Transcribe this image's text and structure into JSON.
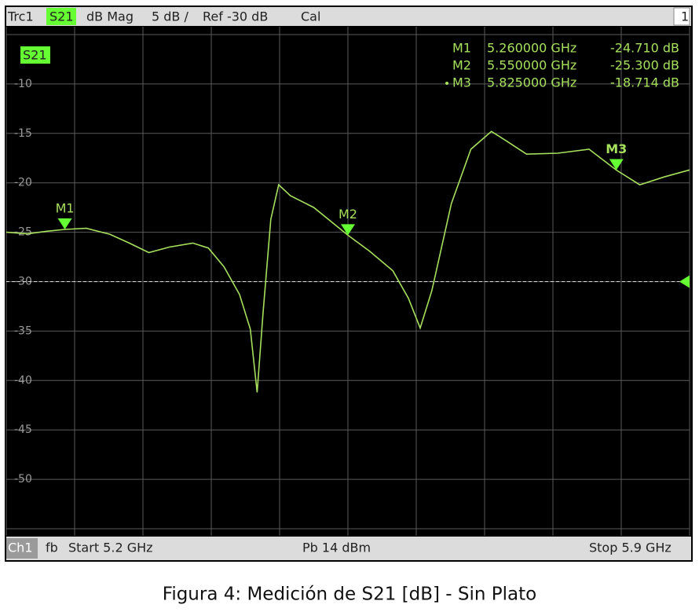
{
  "chart_data": {
    "type": "line",
    "header_items": [
      "Trc1",
      "S21",
      "dB Mag",
      "5 dB /",
      "Ref -30 dB",
      "Cal",
      "1"
    ],
    "footer_items": [
      "Ch1",
      "fb",
      "Start 5.2 GHz",
      "Pb 14 dBm",
      "Stop 5.9 GHz"
    ],
    "x": [
      5.2,
      5.2217,
      5.242,
      5.26,
      5.282,
      5.306,
      5.326,
      5.346,
      5.367,
      5.391,
      5.407,
      5.423,
      5.439,
      5.45,
      5.457,
      5.463,
      5.471,
      5.479,
      5.491,
      5.515,
      5.55,
      5.572,
      5.596,
      5.612,
      5.624,
      5.636,
      5.656,
      5.676,
      5.697,
      5.713,
      5.733,
      5.765,
      5.797,
      5.825,
      5.849,
      5.874,
      5.9
    ],
    "series": [
      {
        "name": "S21",
        "color": "#a6e05c",
        "values": [
          -25.0,
          -25.16,
          -24.9,
          -24.71,
          -24.6,
          -25.2,
          -26.1,
          -27.06,
          -26.5,
          -26.1,
          -26.6,
          -28.5,
          -31.3,
          -34.8,
          -41.2,
          -33.2,
          -23.7,
          -20.2,
          -21.3,
          -22.5,
          -25.3,
          -26.9,
          -28.9,
          -31.7,
          -34.7,
          -30.9,
          -22.1,
          -16.6,
          -14.8,
          -15.8,
          -17.1,
          -17.0,
          -16.6,
          -18.714,
          -20.2,
          -19.4,
          -18.7
        ]
      }
    ],
    "xlim": [
      5.2,
      5.9
    ],
    "xticks": [
      5.2,
      5.27,
      5.34,
      5.41,
      5.48,
      5.55,
      5.62,
      5.69,
      5.76,
      5.83,
      5.9
    ],
    "ylim": [
      -55,
      -5
    ],
    "yticks": [
      -10,
      -15,
      -20,
      -25,
      -30,
      -35,
      -40,
      -45,
      -50
    ],
    "grid": true,
    "ref_level": -30,
    "markers": [
      {
        "name": "M1",
        "x": 5.26,
        "x_label": "5.260000 GHz",
        "value": -24.71,
        "value_label": "-24.710 dB",
        "active": false
      },
      {
        "name": "M2",
        "x": 5.55,
        "x_label": "5.550000 GHz",
        "value": -25.3,
        "value_label": "-25.300 dB",
        "active": false
      },
      {
        "name": "M3",
        "x": 5.825,
        "x_label": "5.825000 GHz",
        "value": -18.714,
        "value_label": "-18.714 dB",
        "active": true
      }
    ],
    "caption": "Figura 4: Medición de S21 [dB] - Sin Plato"
  }
}
